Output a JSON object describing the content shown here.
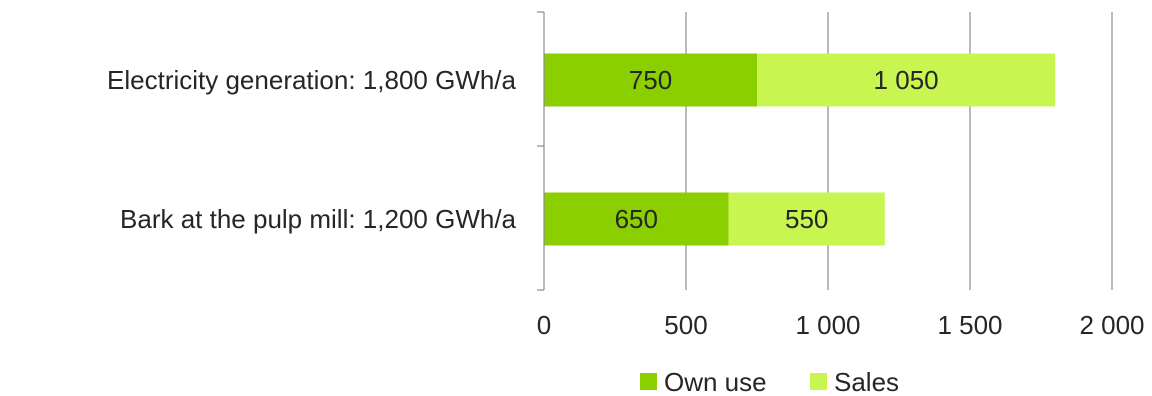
{
  "chart_data": {
    "type": "bar",
    "orientation": "horizontal",
    "stacked": true,
    "categories": [
      "Electricity generation: 1,800 GWh/a",
      "Bark at the pulp mill: 1,200 GWh/a"
    ],
    "series": [
      {
        "name": "Own use",
        "values": [
          750,
          650
        ],
        "color": "#8ccf00",
        "labels": [
          "750",
          "650"
        ]
      },
      {
        "name": "Sales",
        "values": [
          1050,
          550
        ],
        "color": "#c8f550",
        "labels": [
          "1 050",
          "550"
        ]
      }
    ],
    "xlim": [
      0,
      2000
    ],
    "xticks": [
      0,
      500,
      1000,
      1500,
      2000
    ],
    "xtick_labels": [
      "0",
      "500",
      "1 000",
      "1 500",
      "2 000"
    ],
    "title": "",
    "xlabel": "",
    "ylabel": "",
    "grid": "vertical",
    "legend_position": "bottom"
  }
}
